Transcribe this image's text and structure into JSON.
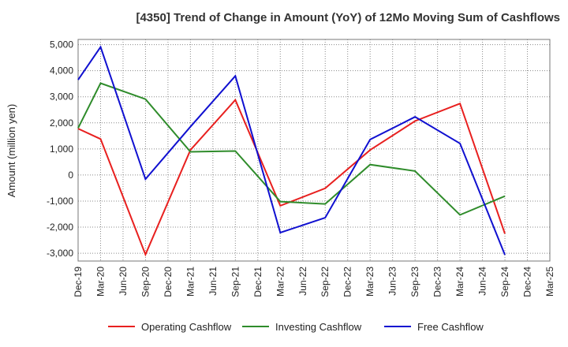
{
  "chart_data": {
    "type": "line",
    "title": "[4350]  Trend of Change in Amount (YoY) of 12Mo Moving Sum of Cashflows",
    "xlabel": "",
    "ylabel": "Amount (million yen)",
    "ylim": [
      -3300,
      5200
    ],
    "yticks": [
      -3000,
      -2000,
      -1000,
      0,
      1000,
      2000,
      3000,
      4000,
      5000
    ],
    "ytick_labels": [
      "-3,000",
      "-2,000",
      "-1,000",
      "0",
      "1,000",
      "2,000",
      "3,000",
      "4,000",
      "5,000"
    ],
    "categories": [
      "Dec-19",
      "Mar-20",
      "Jun-20",
      "Sep-20",
      "Dec-20",
      "Mar-21",
      "Jun-21",
      "Sep-21",
      "Dec-21",
      "Mar-22",
      "Jun-22",
      "Sep-22",
      "Dec-22",
      "Mar-23",
      "Jun-23",
      "Sep-23",
      "Dec-23",
      "Mar-24",
      "Jun-24",
      "Sep-24",
      "Dec-24",
      "Mar-25"
    ],
    "grid": true,
    "legend_position": "bottom",
    "series": [
      {
        "name": "Operating Cashflow",
        "color": "#e8201f",
        "values": [
          1780,
          1380,
          null,
          -3050,
          null,
          960,
          null,
          2880,
          null,
          -1180,
          null,
          -510,
          null,
          960,
          null,
          2070,
          null,
          2740,
          null,
          -2250,
          null,
          null
        ]
      },
      {
        "name": "Investing Cashflow",
        "color": "#2f8c2b",
        "values": [
          1800,
          3520,
          null,
          2910,
          null,
          890,
          null,
          920,
          null,
          -1020,
          null,
          -1110,
          null,
          400,
          null,
          150,
          null,
          -1530,
          null,
          -810,
          null,
          null
        ]
      },
      {
        "name": "Free Cashflow",
        "color": "#1010d0",
        "values": [
          3650,
          4910,
          null,
          -160,
          null,
          1850,
          null,
          3800,
          null,
          -2210,
          null,
          -1640,
          null,
          1360,
          null,
          2230,
          null,
          1210,
          null,
          -3060,
          null,
          null
        ]
      }
    ]
  }
}
